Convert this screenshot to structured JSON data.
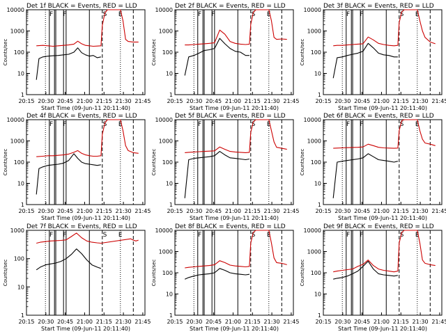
{
  "figure": {
    "background": "#ffffff",
    "series_colors": {
      "events": "#000000",
      "lld": "#cc0000"
    },
    "xtick_labels": [
      "20:15",
      "20:30",
      "20:45",
      "21:00",
      "21:15",
      "21:30",
      "21:45"
    ],
    "xlabel": "Start Time (09-Jun-11 20:11:40)",
    "ylabel": "Counts/sec",
    "ytick_labels": [
      "1",
      "10",
      "100",
      "1000",
      "10000"
    ]
  },
  "chart_data": [
    {
      "type": "line",
      "title": "Det 1f BLACK = Events, RED = LLD",
      "ylim": [
        1,
        10000
      ],
      "log_y": true,
      "xlim_minutes": [
        3.33,
        95
      ],
      "vlines_solid": [
        21,
        25,
        26,
        32,
        34,
        52
      ],
      "vlines_dotted": [
        18,
        76
      ],
      "vlines_dashed": [
        62,
        86
      ],
      "markers": [
        {
          "label": "F",
          "x": 22.5
        },
        {
          "label": "F",
          "x": 33
        },
        {
          "label": "S",
          "x": 64
        },
        {
          "label": "E",
          "x": 76
        }
      ],
      "events": {
        "x": [
          11,
          13,
          16,
          20,
          24,
          28,
          32,
          36,
          40,
          43,
          46,
          49,
          52,
          55,
          58,
          61
        ],
        "y": [
          5,
          50,
          60,
          65,
          68,
          70,
          75,
          80,
          100,
          160,
          95,
          75,
          65,
          70,
          55,
          60
        ]
      },
      "lld": {
        "x": [
          11,
          16,
          20,
          24,
          28,
          32,
          36,
          40,
          43,
          46,
          49,
          52,
          55,
          58,
          61,
          62,
          64,
          66,
          72,
          76,
          78,
          80,
          82,
          86,
          90
        ],
        "y": [
          200,
          210,
          200,
          190,
          200,
          210,
          220,
          240,
          330,
          250,
          210,
          200,
          190,
          195,
          200,
          1800,
          7000,
          10000,
          10000,
          10000,
          3000,
          400,
          320,
          300,
          300
        ]
      }
    },
    {
      "type": "line",
      "title": "Det 2f BLACK = Events, RED = LLD",
      "ylim": [
        1,
        10000
      ],
      "log_y": true,
      "xlim_minutes": [
        3.33,
        95
      ],
      "vlines_solid": [
        21,
        25,
        26,
        32,
        34,
        52
      ],
      "vlines_dotted": [
        18,
        76
      ],
      "vlines_dashed": [
        62,
        86
      ],
      "markers": [
        {
          "label": "F",
          "x": 22.5
        },
        {
          "label": "F",
          "x": 33
        },
        {
          "label": "S",
          "x": 64
        },
        {
          "label": "E",
          "x": 76
        }
      ],
      "events": {
        "x": [
          11,
          14,
          18,
          22,
          26,
          30,
          34,
          38,
          42,
          46,
          50,
          54,
          58,
          61
        ],
        "y": [
          8,
          60,
          70,
          90,
          120,
          130,
          150,
          450,
          250,
          150,
          110,
          100,
          70,
          70
        ]
      },
      "lld": {
        "x": [
          11,
          14,
          18,
          22,
          26,
          30,
          34,
          38,
          42,
          46,
          50,
          54,
          58,
          61,
          62,
          64,
          66,
          72,
          76,
          78,
          80,
          82,
          86,
          90
        ],
        "y": [
          220,
          220,
          230,
          240,
          250,
          260,
          280,
          1100,
          700,
          320,
          260,
          240,
          230,
          240,
          2000,
          7500,
          10000,
          10000,
          10000,
          3000,
          500,
          400,
          420,
          400
        ]
      }
    },
    {
      "type": "line",
      "title": "Det 3f BLACK = Events, RED = LLD",
      "ylim": [
        1,
        10000
      ],
      "log_y": true,
      "xlim_minutes": [
        3.33,
        95
      ],
      "vlines_solid": [
        21,
        25,
        26,
        32,
        34,
        52
      ],
      "vlines_dotted": [
        18,
        76
      ],
      "vlines_dashed": [
        62,
        86
      ],
      "markers": [
        {
          "label": "F",
          "x": 22.5
        },
        {
          "label": "F",
          "x": 33
        },
        {
          "label": "S",
          "x": 64
        },
        {
          "label": "E",
          "x": 76
        }
      ],
      "events": {
        "x": [
          11,
          14,
          18,
          22,
          26,
          30,
          34,
          38,
          42,
          46,
          50,
          54,
          58,
          61
        ],
        "y": [
          6,
          55,
          60,
          70,
          80,
          90,
          110,
          260,
          160,
          90,
          75,
          70,
          60,
          60
        ]
      },
      "lld": {
        "x": [
          11,
          14,
          18,
          22,
          26,
          30,
          34,
          38,
          42,
          46,
          50,
          54,
          58,
          61,
          62,
          64,
          66,
          72,
          76,
          78,
          80,
          82,
          86,
          90
        ],
        "y": [
          200,
          210,
          210,
          220,
          230,
          240,
          250,
          520,
          380,
          260,
          230,
          210,
          200,
          210,
          2500,
          8000,
          10000,
          10000,
          10000,
          3000,
          1000,
          500,
          300,
          250
        ]
      }
    },
    {
      "type": "line",
      "title": "Det 4f BLACK = Events, RED = LLD",
      "ylim": [
        1,
        10000
      ],
      "log_y": true,
      "xlim_minutes": [
        3.33,
        95
      ],
      "vlines_solid": [
        21,
        25,
        26,
        32,
        34,
        52
      ],
      "vlines_dotted": [
        18,
        76
      ],
      "vlines_dashed": [
        62,
        86
      ],
      "markers": [
        {
          "label": "F",
          "x": 22.5
        },
        {
          "label": "F",
          "x": 33
        },
        {
          "label": "S",
          "x": 64
        },
        {
          "label": "E",
          "x": 76
        }
      ],
      "events": {
        "x": [
          11,
          13,
          16,
          20,
          24,
          28,
          32,
          36,
          40,
          43,
          46,
          49,
          52,
          55,
          58,
          61
        ],
        "y": [
          3,
          50,
          60,
          70,
          75,
          80,
          90,
          120,
          250,
          150,
          100,
          85,
          80,
          75,
          70,
          75
        ]
      },
      "lld": {
        "x": [
          11,
          16,
          20,
          24,
          28,
          32,
          36,
          40,
          43,
          46,
          49,
          52,
          55,
          58,
          61,
          62,
          64,
          66,
          72,
          76,
          78,
          80,
          82,
          86,
          90
        ],
        "y": [
          180,
          190,
          200,
          200,
          210,
          220,
          240,
          290,
          350,
          260,
          220,
          200,
          190,
          190,
          200,
          2000,
          7000,
          10000,
          10000,
          10000,
          3000,
          600,
          350,
          280,
          260
        ]
      }
    },
    {
      "type": "line",
      "title": "Det 5f BLACK = Events, RED = LLD",
      "ylim": [
        1,
        10000
      ],
      "log_y": true,
      "xlim_minutes": [
        3.33,
        95
      ],
      "vlines_solid": [
        21,
        25,
        26,
        32,
        34,
        52
      ],
      "vlines_dotted": [
        18,
        76
      ],
      "vlines_dashed": [
        62,
        86
      ],
      "markers": [
        {
          "label": "F",
          "x": 22.5
        },
        {
          "label": "F",
          "x": 33
        },
        {
          "label": "S",
          "x": 64
        },
        {
          "label": "E",
          "x": 76
        }
      ],
      "events": {
        "x": [
          11,
          14,
          18,
          22,
          26,
          30,
          34,
          38,
          42,
          46,
          50,
          54,
          58,
          61
        ],
        "y": [
          2,
          130,
          150,
          160,
          170,
          180,
          200,
          320,
          220,
          160,
          150,
          140,
          130,
          140
        ]
      },
      "lld": {
        "x": [
          11,
          14,
          18,
          22,
          26,
          30,
          34,
          38,
          42,
          46,
          50,
          54,
          58,
          61,
          62,
          64,
          66,
          72,
          76,
          78,
          80,
          82,
          86,
          90
        ],
        "y": [
          280,
          290,
          300,
          310,
          320,
          330,
          340,
          520,
          400,
          320,
          300,
          290,
          280,
          290,
          2500,
          8000,
          10000,
          10000,
          10000,
          3000,
          900,
          500,
          450,
          400
        ]
      }
    },
    {
      "type": "line",
      "title": "Det 6f BLACK = Events, RED = LLD",
      "ylim": [
        1,
        10000
      ],
      "log_y": true,
      "xlim_minutes": [
        3.33,
        95
      ],
      "vlines_solid": [
        21,
        25,
        26,
        32,
        34,
        52
      ],
      "vlines_dotted": [
        18,
        76
      ],
      "vlines_dashed": [
        62,
        86
      ],
      "markers": [
        {
          "label": "F",
          "x": 22.5
        },
        {
          "label": "F",
          "x": 33
        },
        {
          "label": "S",
          "x": 64
        },
        {
          "label": "E",
          "x": 76
        }
      ],
      "events": {
        "x": [
          11,
          14,
          18,
          22,
          26,
          30,
          34,
          38,
          42,
          46,
          50,
          54,
          58,
          61
        ],
        "y": [
          2,
          100,
          110,
          120,
          130,
          140,
          160,
          250,
          180,
          130,
          120,
          110,
          100,
          110
        ]
      },
      "lld": {
        "x": [
          11,
          14,
          18,
          22,
          26,
          30,
          34,
          38,
          42,
          46,
          50,
          54,
          58,
          61,
          62,
          64,
          66,
          72,
          76,
          78,
          80,
          82,
          86,
          90
        ],
        "y": [
          450,
          460,
          470,
          480,
          490,
          500,
          520,
          700,
          600,
          500,
          470,
          460,
          450,
          460,
          3000,
          9000,
          10000,
          10000,
          10000,
          3000,
          1200,
          800,
          700,
          600
        ]
      }
    },
    {
      "type": "line",
      "title": "Det 7f BLACK = Events, RED = LLD",
      "ylim": [
        1,
        1000
      ],
      "log_y": true,
      "xlim_minutes": [
        3.33,
        95
      ],
      "vlines_solid": [
        21,
        25,
        26,
        32,
        34,
        52
      ],
      "vlines_dotted": [
        18,
        76
      ],
      "vlines_dashed": [
        62,
        86
      ],
      "markers": [
        {
          "label": "F",
          "x": 22.5
        },
        {
          "label": "F",
          "x": 33
        },
        {
          "label": "S",
          "x": 64
        },
        {
          "label": "E",
          "x": 76
        }
      ],
      "events": {
        "x": [
          11,
          14,
          18,
          22,
          26,
          30,
          34,
          38,
          42,
          46,
          50,
          54,
          58,
          61
        ],
        "y": [
          40,
          50,
          60,
          65,
          70,
          80,
          100,
          140,
          220,
          150,
          90,
          60,
          50,
          45
        ]
      },
      "lld": {
        "x": [
          11,
          14,
          18,
          22,
          26,
          30,
          34,
          38,
          42,
          46,
          50,
          54,
          58,
          61,
          84,
          86,
          88,
          90
        ],
        "y": [
          350,
          380,
          400,
          420,
          430,
          440,
          460,
          600,
          800,
          550,
          420,
          380,
          360,
          350,
          500,
          450,
          420,
          450
        ]
      }
    },
    {
      "type": "line",
      "title": "Det 8f BLACK = Events, RED = LLD",
      "ylim": [
        1,
        10000
      ],
      "log_y": true,
      "xlim_minutes": [
        3.33,
        95
      ],
      "vlines_solid": [
        21,
        25,
        26,
        32,
        34,
        52
      ],
      "vlines_dotted": [
        18,
        76
      ],
      "vlines_dashed": [
        62,
        86
      ],
      "markers": [
        {
          "label": "F",
          "x": 22.5
        },
        {
          "label": "F",
          "x": 33
        },
        {
          "label": "S",
          "x": 64
        },
        {
          "label": "E",
          "x": 76
        }
      ],
      "events": {
        "x": [
          11,
          14,
          18,
          22,
          26,
          30,
          34,
          38,
          42,
          46,
          50,
          54,
          58,
          61
        ],
        "y": [
          50,
          60,
          70,
          80,
          85,
          90,
          100,
          160,
          130,
          100,
          90,
          85,
          80,
          85
        ]
      },
      "lld": {
        "x": [
          11,
          14,
          18,
          22,
          26,
          30,
          34,
          38,
          42,
          46,
          50,
          54,
          58,
          61,
          62,
          64,
          66,
          72,
          76,
          78,
          80,
          82,
          86,
          90
        ],
        "y": [
          170,
          180,
          190,
          200,
          210,
          220,
          240,
          370,
          300,
          230,
          210,
          200,
          190,
          200,
          2500,
          8000,
          10000,
          10000,
          10000,
          2500,
          500,
          300,
          280,
          240
        ]
      }
    },
    {
      "type": "line",
      "title": "Det 9f BLACK = Events, RED = LLD",
      "ylim": [
        1,
        10000
      ],
      "log_y": true,
      "xlim_minutes": [
        3.33,
        95
      ],
      "vlines_solid": [
        21,
        25,
        26,
        32,
        34,
        52
      ],
      "vlines_dotted": [
        18,
        76
      ],
      "vlines_dashed": [
        62,
        86
      ],
      "markers": [
        {
          "label": "F",
          "x": 22.5
        },
        {
          "label": "F",
          "x": 33
        },
        {
          "label": "S",
          "x": 64
        },
        {
          "label": "E",
          "x": 76
        }
      ],
      "events": {
        "x": [
          11,
          14,
          18,
          22,
          26,
          30,
          34,
          38,
          42,
          46,
          50,
          54,
          58,
          61
        ],
        "y": [
          50,
          55,
          60,
          70,
          90,
          120,
          200,
          350,
          150,
          90,
          80,
          75,
          70,
          75
        ]
      },
      "lld": {
        "x": [
          11,
          14,
          18,
          22,
          26,
          30,
          34,
          38,
          42,
          46,
          50,
          54,
          58,
          61,
          62,
          64,
          66,
          72,
          76,
          78,
          80,
          82,
          86,
          90
        ],
        "y": [
          110,
          120,
          130,
          140,
          150,
          200,
          250,
          400,
          220,
          150,
          130,
          120,
          110,
          120,
          2500,
          8000,
          10000,
          10000,
          10000,
          2500,
          400,
          280,
          240,
          220
        ]
      }
    }
  ]
}
